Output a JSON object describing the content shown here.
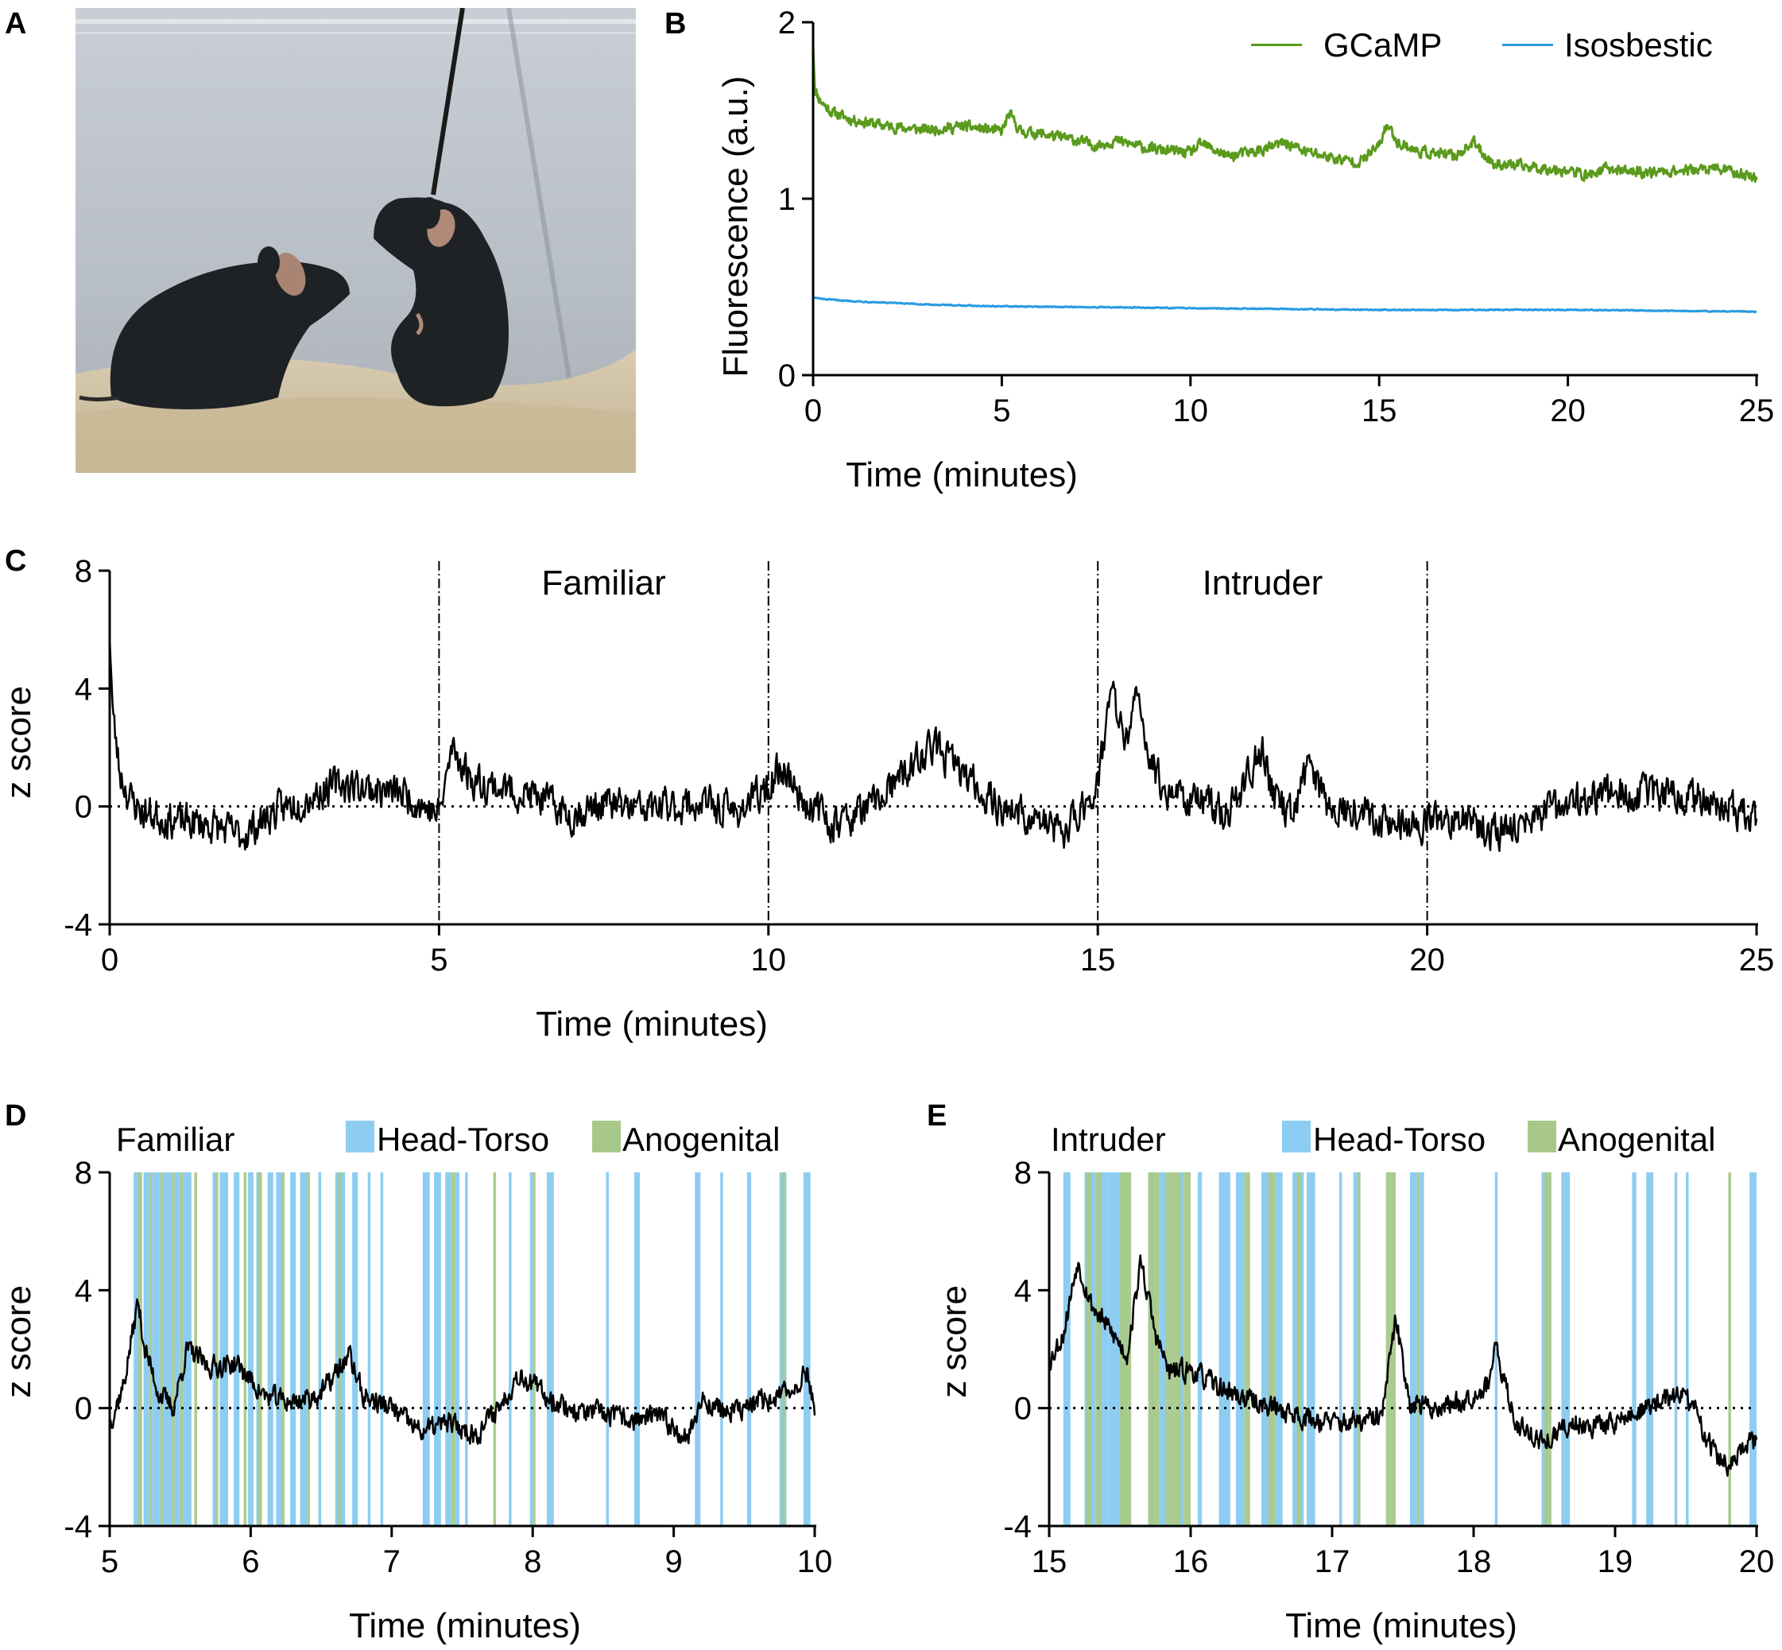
{
  "panels": {
    "A": {
      "letter": "A",
      "photo": {
        "description_icon": "mice-photo-icon",
        "colors": {
          "wall": "#c7ccd3",
          "wall_dark": "#9aa0a8",
          "bedding": "#d9cdb5",
          "bedding_dark": "#b8a889",
          "mouse": "#1f2224",
          "ear": "#b58d7c",
          "cable": "#1a1a1a"
        }
      }
    },
    "B": {
      "letter": "B"
    },
    "C": {
      "letter": "C"
    },
    "D": {
      "letter": "D"
    },
    "E": {
      "letter": "E"
    }
  },
  "colors": {
    "gcamp": "#5a9a1c",
    "isosbestic": "#2a9be0",
    "trace": "#000000",
    "head_torso": "#8ecdf2",
    "anogenital": "#a8c88a"
  },
  "chart_data": [
    {
      "id": "B",
      "type": "line",
      "title": "",
      "xlabel": "Time (minutes)",
      "ylabel": "Fluorescence (a.u.)",
      "xlim": [
        0,
        25
      ],
      "ylim": [
        0,
        2
      ],
      "xticks": [
        "0",
        "5",
        "10",
        "15",
        "20",
        "25"
      ],
      "yticks": [
        "0",
        "1",
        "2"
      ],
      "xtick_values": [
        0,
        5,
        10,
        15,
        20,
        25
      ],
      "ytick_values": [
        0,
        1,
        2
      ],
      "legend": [
        "GCaMP",
        "Isosbestic"
      ],
      "legend_position": "top-right",
      "series": [
        {
          "name": "GCaMP",
          "x": [
            0,
            0.05,
            0.15,
            0.3,
            0.5,
            1,
            2,
            3,
            4,
            5,
            5.2,
            5.5,
            6,
            7,
            7.5,
            8,
            9,
            10,
            10.3,
            11,
            12,
            12.5,
            13,
            14,
            14.5,
            15,
            15.2,
            15.5,
            16,
            17,
            17.5,
            18,
            19,
            20,
            20.5,
            21,
            22,
            23,
            24,
            25
          ],
          "values": [
            1.88,
            1.62,
            1.57,
            1.53,
            1.49,
            1.45,
            1.41,
            1.39,
            1.41,
            1.38,
            1.48,
            1.38,
            1.37,
            1.33,
            1.3,
            1.33,
            1.28,
            1.26,
            1.31,
            1.24,
            1.28,
            1.32,
            1.27,
            1.22,
            1.21,
            1.3,
            1.42,
            1.32,
            1.27,
            1.24,
            1.32,
            1.2,
            1.18,
            1.16,
            1.13,
            1.17,
            1.15,
            1.16,
            1.17,
            1.12
          ]
        },
        {
          "name": "Isosbestic",
          "x": [
            0,
            0.3,
            1,
            3,
            5,
            10,
            15,
            20,
            25
          ],
          "values": [
            0.44,
            0.43,
            0.42,
            0.4,
            0.39,
            0.38,
            0.37,
            0.37,
            0.36
          ]
        }
      ]
    },
    {
      "id": "C",
      "type": "line",
      "xlabel": "Time (minutes)",
      "ylabel": "z score",
      "xlim": [
        0,
        25
      ],
      "ylim": [
        -4,
        8
      ],
      "xticks": [
        "0",
        "5",
        "10",
        "15",
        "20",
        "25"
      ],
      "yticks": [
        "-4",
        "0",
        "4",
        "8"
      ],
      "xtick_values": [
        0,
        5,
        10,
        15,
        20,
        25
      ],
      "ytick_values": [
        -4,
        0,
        4,
        8
      ],
      "baseline": 0,
      "epoch_lines": [
        5,
        10,
        15,
        20
      ],
      "epoch_labels": [
        {
          "text": "Familiar",
          "x": 7.5
        },
        {
          "text": "Intruder",
          "x": 17.5
        }
      ],
      "series": [
        {
          "name": "z score",
          "x": [
            0,
            0.05,
            0.15,
            0.3,
            0.5,
            1,
            1.5,
            2,
            2.5,
            3,
            3.5,
            4,
            4.5,
            5,
            5.2,
            5.5,
            6,
            6.5,
            7,
            7.5,
            8,
            8.5,
            9,
            9.5,
            10,
            10.2,
            10.5,
            11,
            11.5,
            12,
            12.5,
            13,
            13.5,
            14,
            14.5,
            15,
            15.2,
            15.4,
            15.6,
            15.8,
            16,
            16.5,
            17,
            17.5,
            17.7,
            18,
            18.2,
            18.5,
            19,
            19.5,
            20,
            20.5,
            21,
            21.5,
            22,
            22.5,
            23,
            23.5,
            24,
            24.5,
            25
          ],
          "values": [
            6.0,
            3.0,
            1.2,
            0.3,
            -0.2,
            -0.5,
            -0.6,
            -1.0,
            -0.2,
            0.3,
            0.8,
            0.6,
            0.4,
            -0.3,
            2.0,
            0.9,
            0.6,
            0.3,
            -0.3,
            0.1,
            -0.1,
            0.0,
            0.1,
            -0.2,
            0.6,
            1.4,
            0.3,
            -0.6,
            -0.1,
            0.9,
            2.1,
            1.0,
            0.0,
            -0.4,
            -0.9,
            0.8,
            4.0,
            2.2,
            3.6,
            1.6,
            0.6,
            0.2,
            -0.2,
            2.0,
            0.1,
            -0.2,
            1.6,
            0.0,
            -0.1,
            -0.6,
            -0.6,
            -0.3,
            -0.9,
            -0.5,
            -0.1,
            0.4,
            0.4,
            0.4,
            0.4,
            0.1,
            -0.6
          ]
        }
      ]
    },
    {
      "id": "D",
      "type": "line",
      "title": "Familiar",
      "xlabel": "Time (minutes)",
      "ylabel": "z score",
      "xlim": [
        5,
        10
      ],
      "ylim": [
        -4,
        8
      ],
      "xticks": [
        "5",
        "6",
        "7",
        "8",
        "9",
        "10"
      ],
      "yticks": [
        "-4",
        "0",
        "4",
        "8"
      ],
      "xtick_values": [
        5,
        6,
        7,
        8,
        9,
        10
      ],
      "ytick_values": [
        -4,
        0,
        4,
        8
      ],
      "baseline": 0,
      "legend": [
        "Head-Torso",
        "Anogenital"
      ],
      "series": [
        {
          "name": "z score",
          "x": [
            5,
            5.1,
            5.2,
            5.25,
            5.35,
            5.45,
            5.55,
            5.7,
            5.9,
            6.1,
            6.3,
            6.5,
            6.7,
            6.8,
            7.0,
            7.2,
            7.4,
            7.6,
            7.8,
            7.9,
            8.1,
            8.3,
            8.5,
            8.7,
            8.9,
            9.1,
            9.2,
            9.4,
            9.6,
            9.8,
            9.95,
            10
          ],
          "values": [
            -0.5,
            0.8,
            3.6,
            2.0,
            0.5,
            0.0,
            2.0,
            1.4,
            1.5,
            0.4,
            0.2,
            0.5,
            1.8,
            0.4,
            0.0,
            -0.8,
            -0.5,
            -0.9,
            0.3,
            1.2,
            0.4,
            -0.1,
            -0.2,
            -0.4,
            -0.3,
            -1.0,
            0.3,
            -0.2,
            0.2,
            0.5,
            1.2,
            0.0
          ]
        }
      ],
      "events": {
        "head_torso": [
          [
            5.17,
            5.22
          ],
          [
            5.24,
            5.28
          ],
          [
            5.3,
            5.36
          ],
          [
            5.38,
            5.44
          ],
          [
            5.46,
            5.5
          ],
          [
            5.52,
            5.58
          ],
          [
            5.73,
            5.76
          ],
          [
            5.78,
            5.84
          ],
          [
            5.88,
            5.92
          ],
          [
            5.98,
            6.02
          ],
          [
            6.04,
            6.07
          ],
          [
            6.12,
            6.16
          ],
          [
            6.18,
            6.22
          ],
          [
            6.28,
            6.32
          ],
          [
            6.35,
            6.4
          ],
          [
            6.48,
            6.5
          ],
          [
            6.6,
            6.67
          ],
          [
            6.72,
            6.76
          ],
          [
            6.83,
            6.85
          ],
          [
            6.92,
            6.94
          ],
          [
            7.22,
            7.27
          ],
          [
            7.3,
            7.35
          ],
          [
            7.38,
            7.42
          ],
          [
            7.45,
            7.48
          ],
          [
            7.52,
            7.54
          ],
          [
            7.83,
            7.85
          ],
          [
            7.98,
            8.0
          ],
          [
            8.1,
            8.15
          ],
          [
            8.52,
            8.54
          ],
          [
            8.72,
            8.76
          ],
          [
            9.15,
            9.19
          ],
          [
            9.33,
            9.35
          ],
          [
            9.52,
            9.55
          ],
          [
            9.75,
            9.8
          ],
          [
            9.92,
            9.97
          ]
        ],
        "anogenital": [
          [
            5.2,
            5.23
          ],
          [
            5.28,
            5.3
          ],
          [
            5.36,
            5.38
          ],
          [
            5.44,
            5.46
          ],
          [
            5.5,
            5.52
          ],
          [
            5.6,
            5.62
          ],
          [
            5.75,
            5.77
          ],
          [
            5.95,
            5.97
          ],
          [
            6.05,
            6.08
          ],
          [
            6.22,
            6.24
          ],
          [
            6.4,
            6.42
          ],
          [
            6.62,
            6.64
          ],
          [
            7.42,
            7.45
          ],
          [
            7.72,
            7.74
          ],
          [
            8.0,
            8.02
          ],
          [
            9.77,
            9.79
          ]
        ]
      }
    },
    {
      "id": "E",
      "type": "line",
      "title": "Intruder",
      "xlabel": "Time (minutes)",
      "ylabel": "z score",
      "xlim": [
        15,
        20
      ],
      "ylim": [
        -4,
        8
      ],
      "xticks": [
        "15",
        "16",
        "17",
        "18",
        "19",
        "20"
      ],
      "yticks": [
        "-4",
        "0",
        "4",
        "8"
      ],
      "xtick_values": [
        15,
        16,
        17,
        18,
        19,
        20
      ],
      "ytick_values": [
        -4,
        0,
        4,
        8
      ],
      "baseline": 0,
      "legend": [
        "Head-Torso",
        "Anogenital"
      ],
      "series": [
        {
          "name": "z score",
          "x": [
            15,
            15.1,
            15.2,
            15.3,
            15.45,
            15.55,
            15.65,
            15.75,
            15.85,
            16.0,
            16.2,
            16.4,
            16.6,
            16.8,
            17.0,
            17.2,
            17.35,
            17.45,
            17.55,
            17.7,
            17.9,
            18.1,
            18.15,
            18.3,
            18.5,
            18.7,
            18.9,
            19.1,
            19.3,
            19.5,
            19.7,
            19.8,
            20
          ],
          "values": [
            1.6,
            2.5,
            5.0,
            3.5,
            2.5,
            1.8,
            5.0,
            2.5,
            1.2,
            1.3,
            0.7,
            0.3,
            0.0,
            -0.3,
            -0.5,
            -0.5,
            -0.3,
            3.0,
            0.2,
            0.0,
            0.2,
            0.8,
            2.0,
            -0.5,
            -1.2,
            -0.5,
            -0.6,
            -0.3,
            0.2,
            0.5,
            -1.5,
            -2.0,
            -1.0
          ]
        }
      ],
      "events": {
        "head_torso": [
          [
            15.1,
            15.15
          ],
          [
            15.25,
            15.33
          ],
          [
            15.35,
            15.42
          ],
          [
            15.42,
            15.55
          ],
          [
            15.7,
            15.74
          ],
          [
            15.78,
            15.82
          ],
          [
            15.92,
            15.95
          ],
          [
            16.05,
            16.08
          ],
          [
            16.2,
            16.28
          ],
          [
            16.32,
            16.38
          ],
          [
            16.5,
            16.56
          ],
          [
            16.6,
            16.65
          ],
          [
            16.72,
            16.8
          ],
          [
            16.82,
            16.88
          ],
          [
            17.05,
            17.07
          ],
          [
            17.15,
            17.2
          ],
          [
            17.55,
            17.6
          ],
          [
            17.62,
            17.65
          ],
          [
            18.15,
            18.17
          ],
          [
            18.48,
            18.52
          ],
          [
            18.62,
            18.68
          ],
          [
            19.12,
            19.15
          ],
          [
            19.22,
            19.27
          ],
          [
            19.42,
            19.44
          ],
          [
            19.5,
            19.52
          ],
          [
            19.95,
            20.0
          ]
        ],
        "anogenital": [
          [
            15.26,
            15.3
          ],
          [
            15.33,
            15.37
          ],
          [
            15.5,
            15.58
          ],
          [
            15.7,
            15.78
          ],
          [
            15.82,
            15.88
          ],
          [
            15.88,
            15.93
          ],
          [
            15.95,
            16.0
          ],
          [
            16.38,
            16.42
          ],
          [
            16.55,
            16.6
          ],
          [
            16.75,
            16.78
          ],
          [
            17.18,
            17.2
          ],
          [
            17.38,
            17.45
          ],
          [
            17.6,
            17.62
          ],
          [
            18.5,
            18.55
          ],
          [
            19.8,
            19.82
          ]
        ]
      }
    }
  ]
}
